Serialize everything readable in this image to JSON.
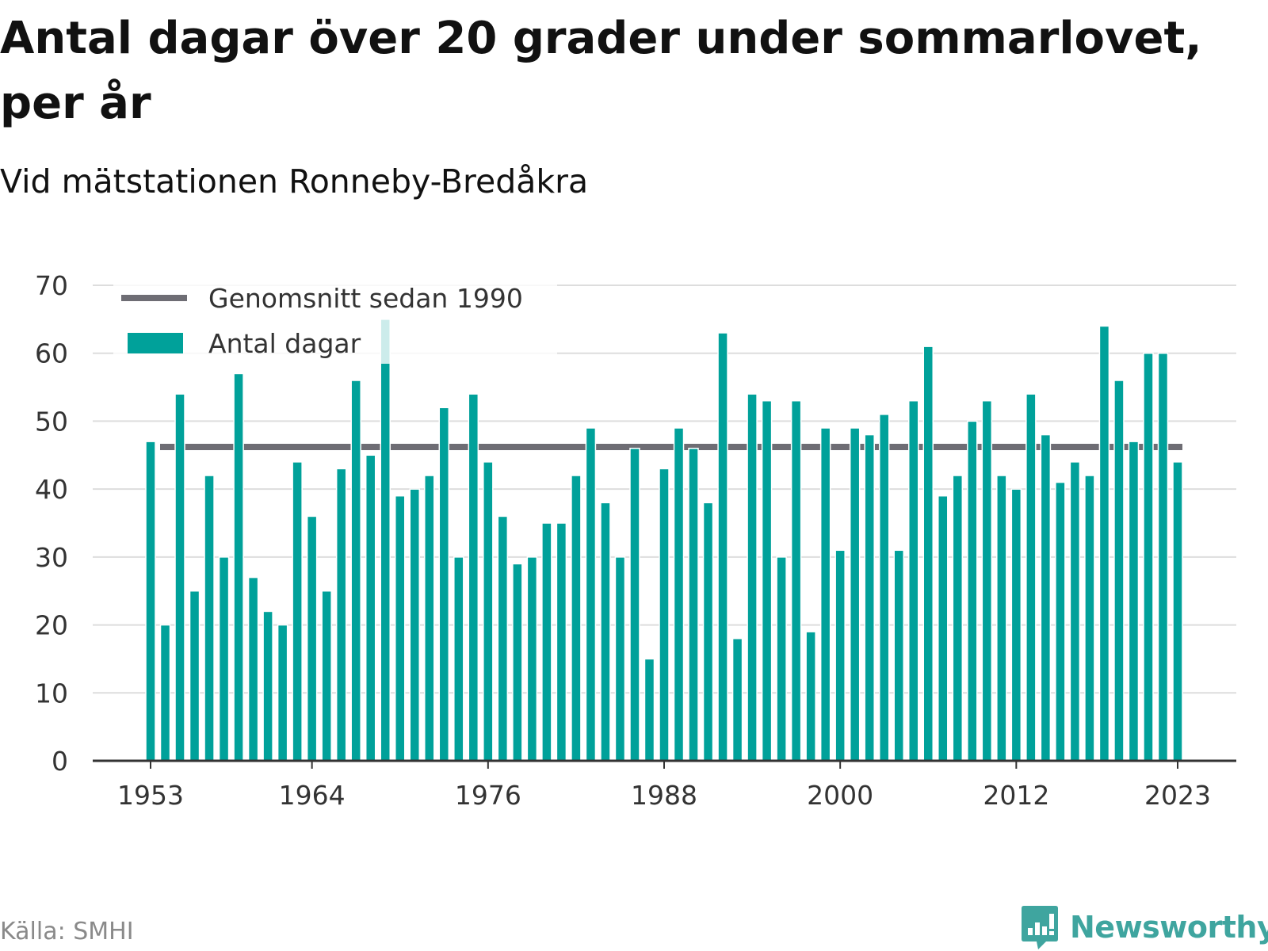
{
  "title": "Antal dagar över 20 grader under sommarlovet, per år",
  "subtitle": "Vid mätstationen Ronneby-Bredåkra",
  "source": "Källa: SMHI",
  "brand": {
    "name": "Newsworthy",
    "icon": "chart-bubble-icon",
    "color": "#3fa59f"
  },
  "colors": {
    "bars": "#00a19a",
    "average_line": "#6e6d74",
    "grid": "#dddddd",
    "axis": "#333333"
  },
  "chart_data": {
    "type": "bar",
    "title": "Antal dagar över 20 grader under sommarlovet, per år",
    "subtitle": "Vid mätstationen Ronneby-Bredåkra",
    "x_start": 1953,
    "x_end": 2023,
    "x_ticks": [
      1953,
      1964,
      1976,
      1988,
      2000,
      2012,
      2023
    ],
    "y_ticks": [
      0,
      10,
      20,
      30,
      40,
      50,
      60,
      70
    ],
    "ylim": [
      0,
      70
    ],
    "grid": "horizontal",
    "legend_position": "top-left",
    "series": [
      {
        "name": "Antal dagar",
        "type": "bar",
        "color": "#00a19a",
        "values": [
          47,
          20,
          54,
          25,
          42,
          30,
          57,
          27,
          22,
          20,
          44,
          36,
          25,
          43,
          56,
          45,
          65,
          39,
          40,
          42,
          52,
          30,
          54,
          44,
          36,
          29,
          30,
          35,
          35,
          42,
          49,
          38,
          30,
          46,
          15,
          43,
          49,
          46,
          38,
          63,
          18,
          54,
          53,
          30,
          53,
          19,
          49,
          31,
          49,
          48,
          51,
          31,
          53,
          61,
          39,
          42,
          50,
          53,
          42,
          40,
          54,
          48,
          41,
          44,
          42,
          64,
          56,
          47,
          60,
          60,
          44
        ]
      },
      {
        "name": "Genomsnitt sedan 1990",
        "type": "line",
        "color": "#6e6d74",
        "value": 46.2
      }
    ]
  }
}
